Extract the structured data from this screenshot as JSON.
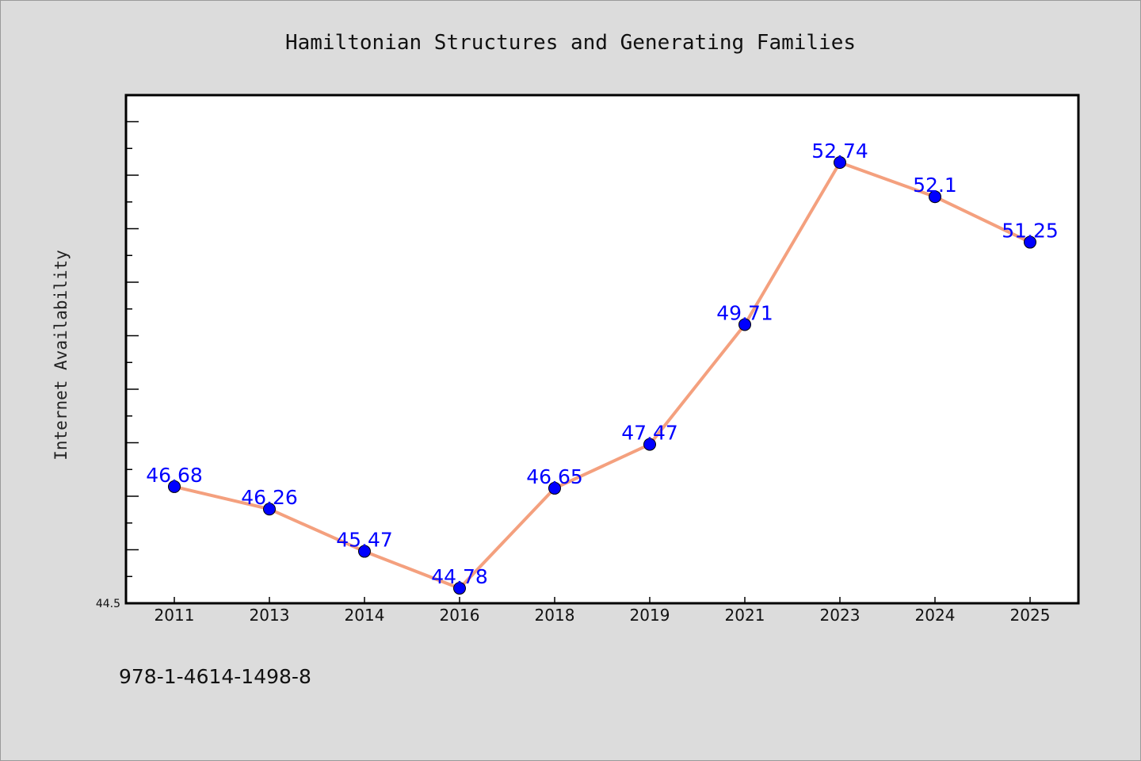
{
  "chart_data": {
    "type": "line",
    "title": "Hamiltonian Structures and Generating Families",
    "xlabel": "",
    "ylabel": "Internet Availability",
    "categories": [
      "2011",
      "2013",
      "2014",
      "2016",
      "2018",
      "2019",
      "2021",
      "2023",
      "2024",
      "2025"
    ],
    "values": [
      46.68,
      46.26,
      45.47,
      44.78,
      46.65,
      47.47,
      49.71,
      52.74,
      52.1,
      51.25
    ],
    "data_labels": [
      "46.68",
      "46.26",
      "45.47",
      "44.78",
      "46.65",
      "47.47",
      "49.71",
      "52.74",
      "52.1",
      "51.25"
    ],
    "ylim": [
      44.5,
      54.0
    ],
    "y_tick_labels": [
      "44.5"
    ],
    "grid": false,
    "legend": "none",
    "line_color": "#f4a07e",
    "marker_color": "#0000ff",
    "label_color": "#0000ff"
  },
  "footnote": "978-1-4614-1498-8"
}
